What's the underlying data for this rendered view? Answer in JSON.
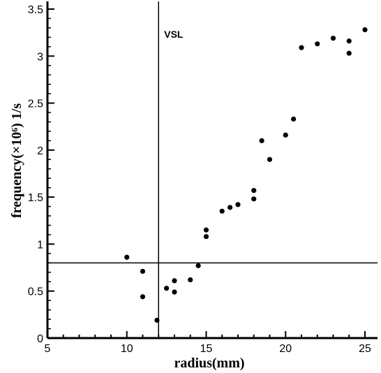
{
  "chart_data": {
    "type": "scatter",
    "title": "",
    "xlabel": "radius(mm)",
    "ylabel": "frequency(×10⁶) 1/s",
    "xlim": [
      5,
      25.8
    ],
    "ylim": [
      0,
      3.6
    ],
    "xticks": [
      5,
      10,
      15,
      20,
      25
    ],
    "yticks": [
      0,
      0.5,
      1,
      1.5,
      2,
      2.5,
      3,
      3.5
    ],
    "xtick_labels": [
      "5",
      "10",
      "15",
      "20",
      "25"
    ],
    "ytick_labels": [
      "0",
      "0.5",
      "1",
      "1.5",
      "2",
      "2.5",
      "3",
      "3.5"
    ],
    "grid": false,
    "legend": "none",
    "series": [
      {
        "points": [
          [
            10,
            0.86
          ],
          [
            11,
            0.71
          ],
          [
            11,
            0.44
          ],
          [
            11.9,
            0.19
          ],
          [
            12.5,
            0.53
          ],
          [
            13,
            0.61
          ],
          [
            13,
            0.49
          ],
          [
            14,
            0.62
          ],
          [
            14.5,
            0.77
          ],
          [
            15,
            1.15
          ],
          [
            15,
            1.08
          ],
          [
            16,
            1.35
          ],
          [
            16.5,
            1.39
          ],
          [
            17,
            1.42
          ],
          [
            18,
            1.57
          ],
          [
            18,
            1.48
          ],
          [
            18.5,
            2.1
          ],
          [
            19,
            1.9
          ],
          [
            20,
            2.16
          ],
          [
            20.5,
            2.33
          ],
          [
            21,
            3.09
          ],
          [
            22,
            3.13
          ],
          [
            23,
            3.19
          ],
          [
            24,
            3.16
          ],
          [
            24,
            3.03
          ],
          [
            25,
            3.28
          ]
        ]
      }
    ],
    "reference_lines": [
      {
        "orientation": "vertical",
        "value": 12,
        "label": "VSL"
      },
      {
        "orientation": "horizontal",
        "value": 0.8,
        "label": ""
      }
    ]
  }
}
